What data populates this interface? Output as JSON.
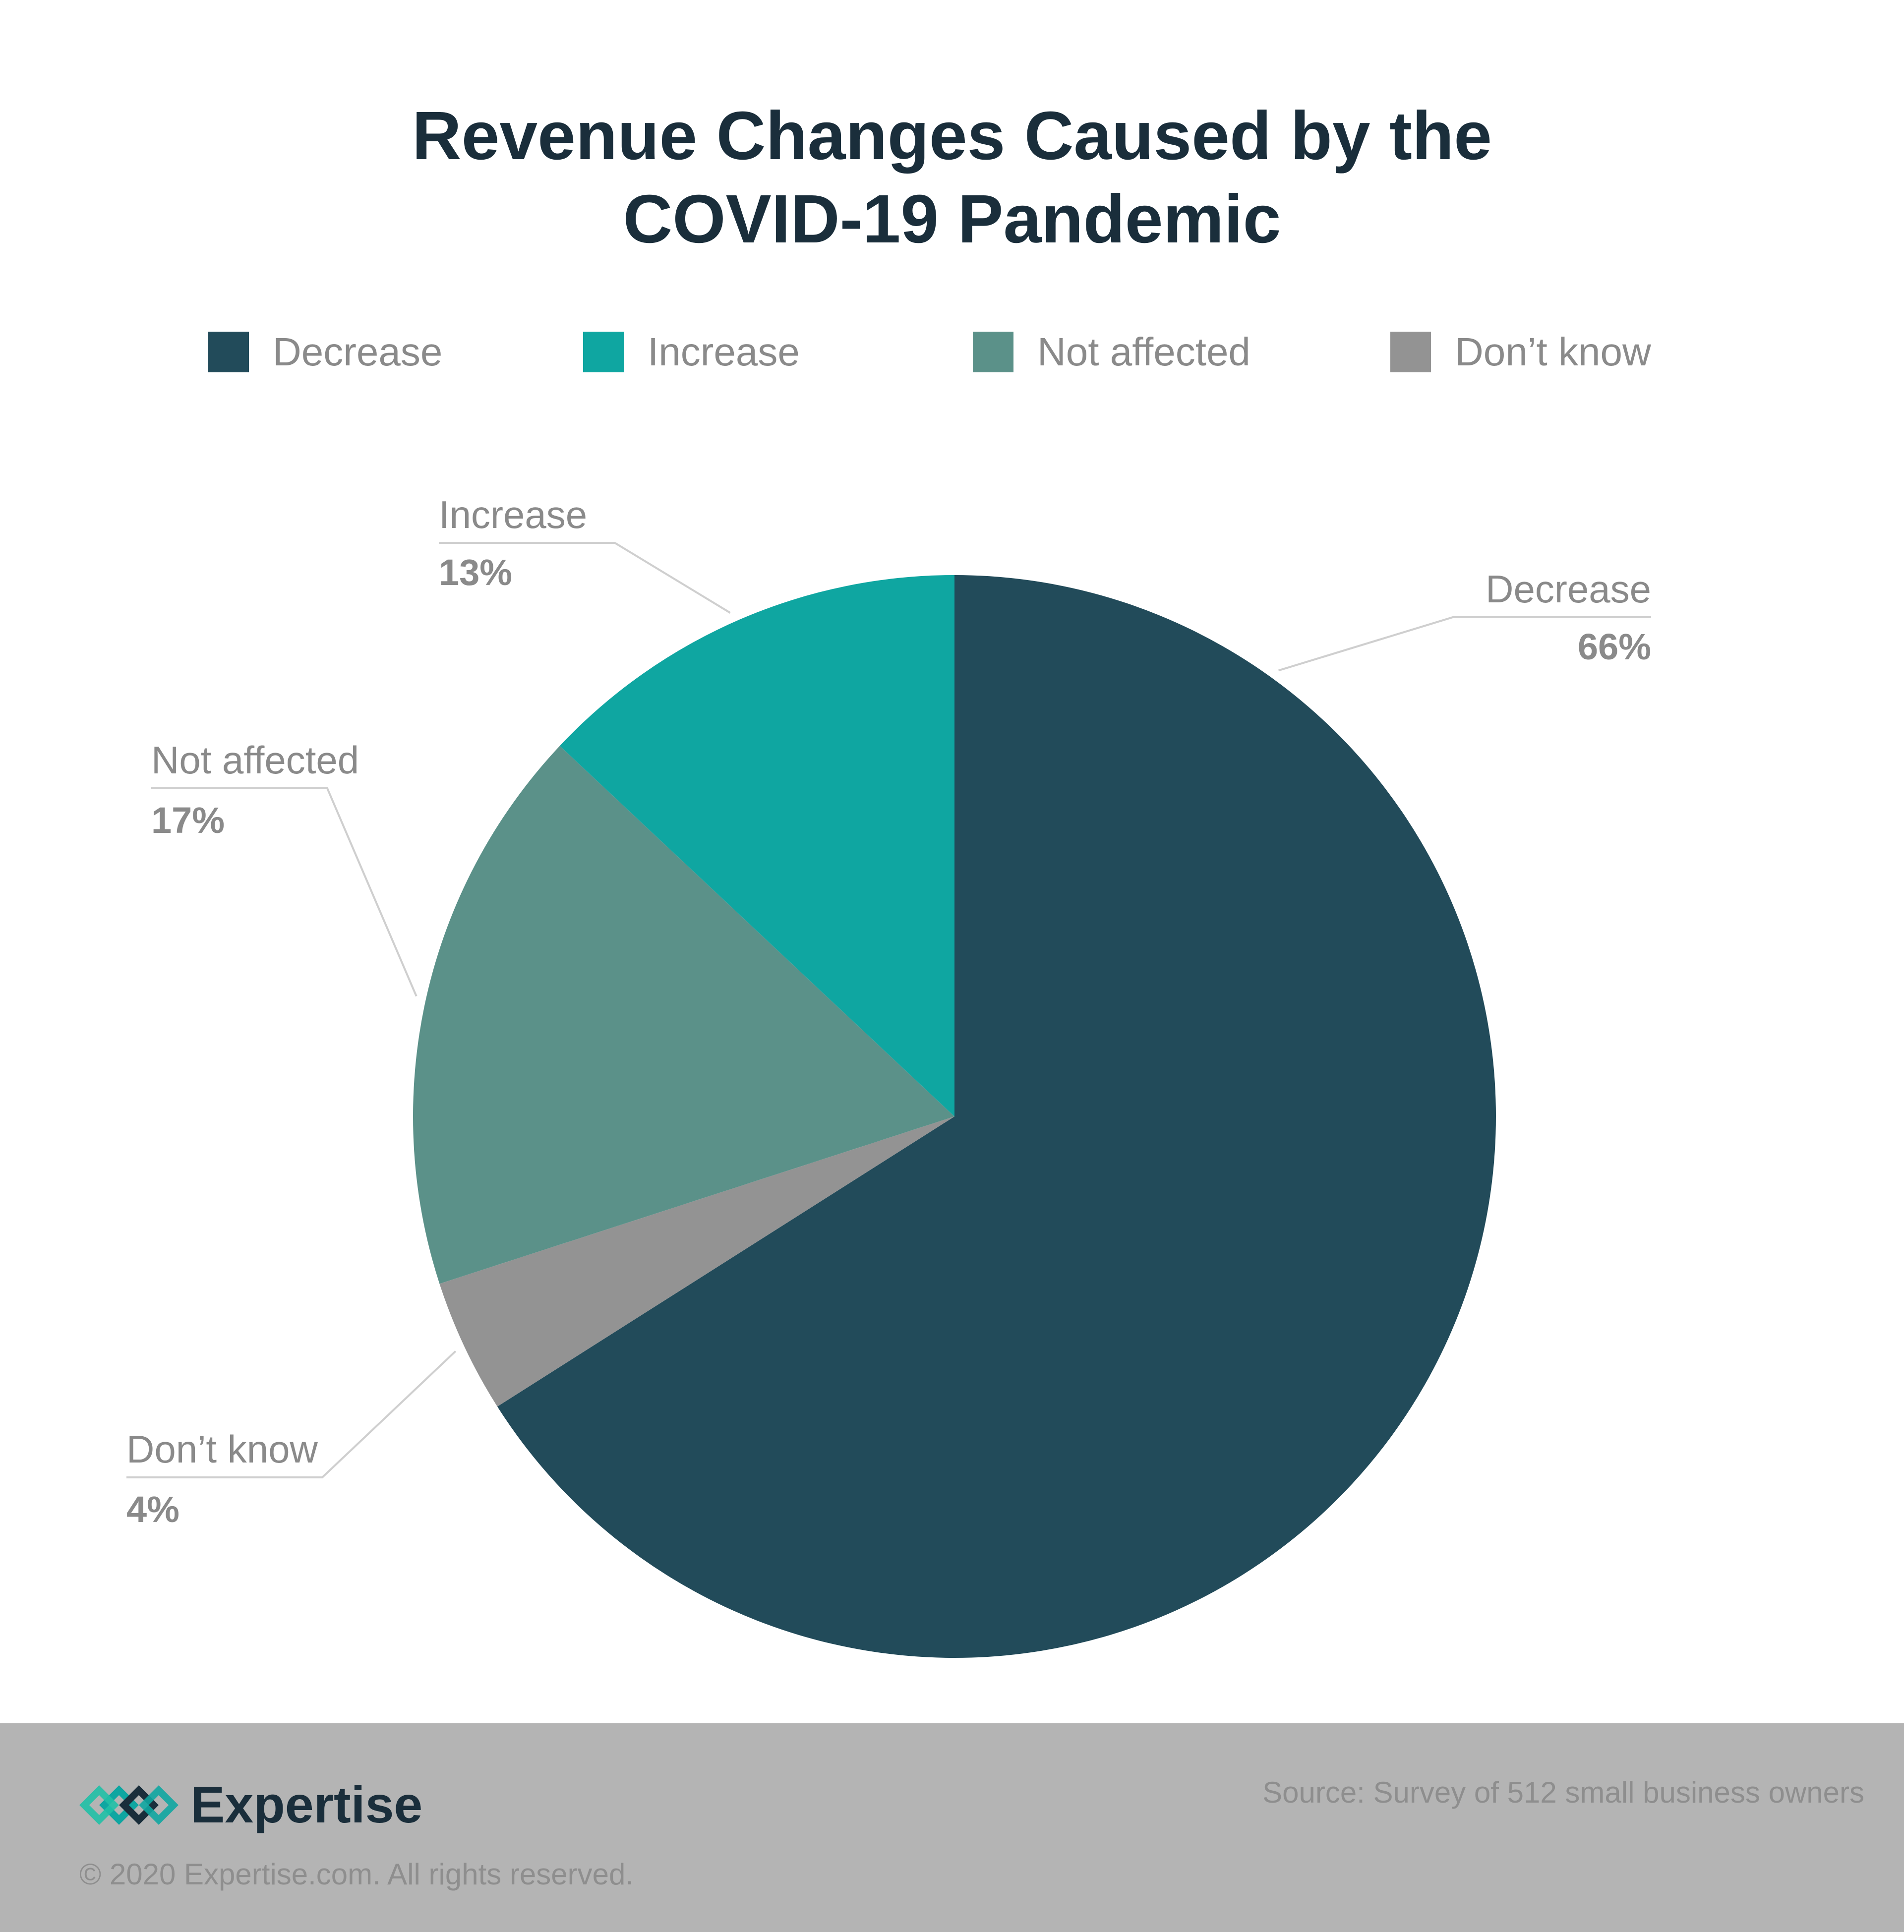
{
  "chart_data": {
    "type": "pie",
    "title_lines": [
      "Revenue Changes Caused by the",
      "COVID-19 Pandemic"
    ],
    "legend_position": "top",
    "slices": [
      {
        "label": "Decrease",
        "value": 66,
        "value_text": "66%",
        "color": "#224b5a"
      },
      {
        "label": "Don’t know",
        "value": 4,
        "value_text": "4%",
        "color": "#939393"
      },
      {
        "label": "Not affected",
        "value": 17,
        "value_text": "17%",
        "color": "#5b9189"
      },
      {
        "label": "Increase",
        "value": 13,
        "value_text": "13%",
        "color": "#0fa6a1"
      }
    ],
    "legend": [
      {
        "label": "Decrease",
        "color": "#224b5a"
      },
      {
        "label": "Increase",
        "color": "#0fa6a1"
      },
      {
        "label": "Not affected",
        "color": "#5b9189"
      },
      {
        "label": "Don’t know",
        "color": "#939393"
      }
    ]
  },
  "footer": {
    "brand": "Expertise",
    "brand_icon": "expertise-diamonds-logo",
    "copyright": "© 2020 Expertise.com. All rights reserved.",
    "source": "Source: Survey of 512 small business owners"
  }
}
